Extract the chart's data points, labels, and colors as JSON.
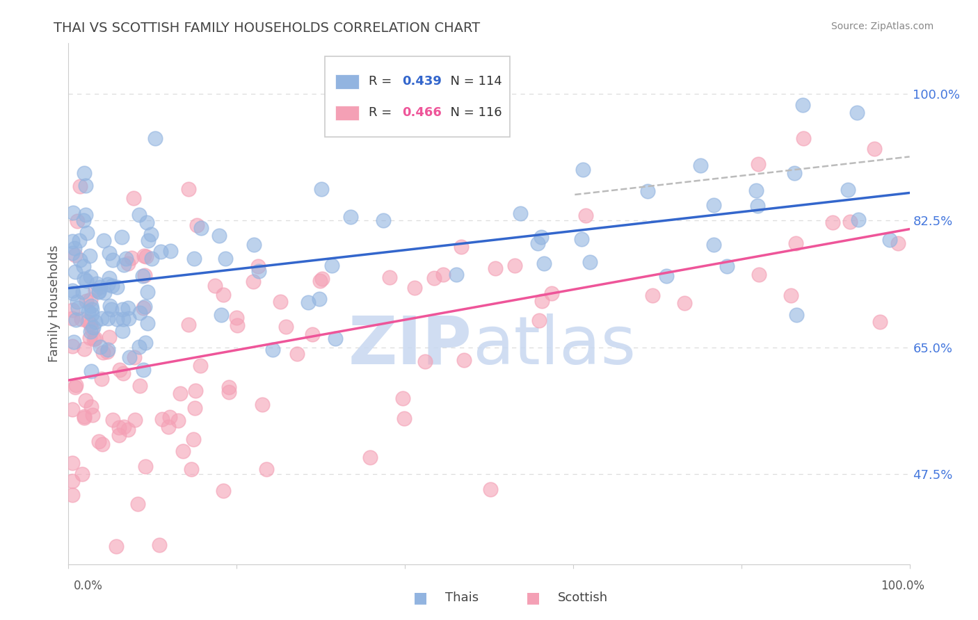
{
  "title": "THAI VS SCOTTISH FAMILY HOUSEHOLDS CORRELATION CHART",
  "source": "Source: ZipAtlas.com",
  "ylabel": "Family Households",
  "ymin": 35.0,
  "ymax": 107.0,
  "xmin": 0.0,
  "xmax": 100.0,
  "yticks": [
    47.5,
    65.0,
    82.5,
    100.0
  ],
  "ytick_labels": [
    "47.5%",
    "65.0%",
    "82.5%",
    "100.0%"
  ],
  "blue_R": "0.439",
  "blue_N": "114",
  "pink_R": "0.466",
  "pink_N": "116",
  "blue_color": "#92B4E0",
  "pink_color": "#F4A0B5",
  "blue_line_color": "#3366CC",
  "pink_line_color": "#EE5599",
  "dashed_line_color": "#BBBBBB",
  "grid_color": "#DDDDDD",
  "title_color": "#444444",
  "source_color": "#888888",
  "ytick_color": "#4477DD",
  "legend_text_color": "#333333",
  "legend_R_color": "#3366CC",
  "watermark_ZIP_color": "#C8D8F0",
  "watermark_atlas_color": "#C8D8F0"
}
